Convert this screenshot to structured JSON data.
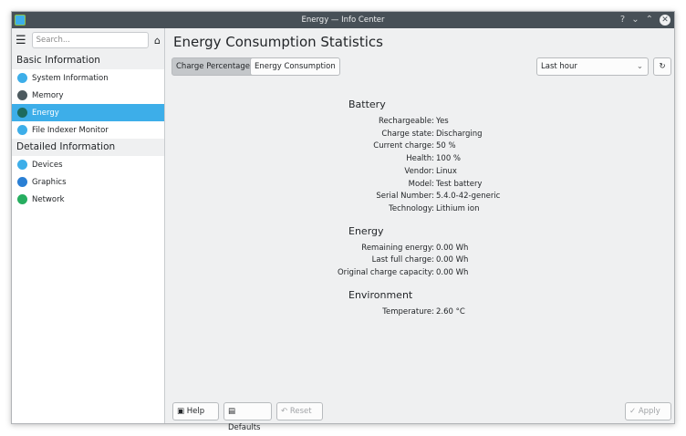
{
  "window": {
    "title": "Energy — Info Center",
    "help": "?",
    "minimize": "⌄",
    "maximize": "⌃",
    "close": "✕"
  },
  "sidebar": {
    "search_placeholder": "Search...",
    "categories": [
      {
        "label": "Basic Information",
        "items": [
          {
            "label": "System Information",
            "icon": "info-icon",
            "color": "#3daee9"
          },
          {
            "label": "Memory",
            "icon": "memory-icon",
            "color": "#4d5a5f"
          },
          {
            "label": "Energy",
            "icon": "energy-icon",
            "color": "#1d6b5f"
          },
          {
            "label": "File Indexer Monitor",
            "icon": "file-indexer-icon",
            "color": "#3daee9"
          }
        ]
      },
      {
        "label": "Detailed Information",
        "items": [
          {
            "label": "Devices",
            "icon": "devices-icon",
            "color": "#3daee9"
          },
          {
            "label": "Graphics",
            "icon": "graphics-icon",
            "color": "#2a7fd4"
          },
          {
            "label": "Network",
            "icon": "network-icon",
            "color": "#27ae60"
          }
        ]
      }
    ],
    "selected": "Energy"
  },
  "main": {
    "title": "Energy Consumption Statistics",
    "tabs": [
      {
        "label": "Charge Percentage",
        "active": true
      },
      {
        "label": "Energy Consumption",
        "active": false
      }
    ],
    "period": "Last hour",
    "sections": [
      {
        "title": "Battery",
        "rows": [
          [
            "Rechargeable:",
            "Yes"
          ],
          [
            "Charge state:",
            "Discharging"
          ],
          [
            "Current charge:",
            "50 %"
          ],
          [
            "Health:",
            "100 %"
          ],
          [
            "Vendor:",
            "Linux"
          ],
          [
            "Model:",
            "Test battery"
          ],
          [
            "Serial Number:",
            "5.4.0-42-generic"
          ],
          [
            "Technology:",
            "Lithium ion"
          ]
        ]
      },
      {
        "title": "Energy",
        "rows": [
          [
            "Remaining energy:",
            "0.00 Wh"
          ],
          [
            "Last full charge:",
            "0.00 Wh"
          ],
          [
            "Original charge capacity:",
            "0.00 Wh"
          ]
        ]
      },
      {
        "title": "Environment",
        "rows": [
          [
            "Temperature:",
            "2.60 °C"
          ]
        ]
      }
    ]
  },
  "footer": {
    "help": "Help",
    "defaults": "Defaults",
    "reset": "Reset",
    "apply": "Apply"
  }
}
